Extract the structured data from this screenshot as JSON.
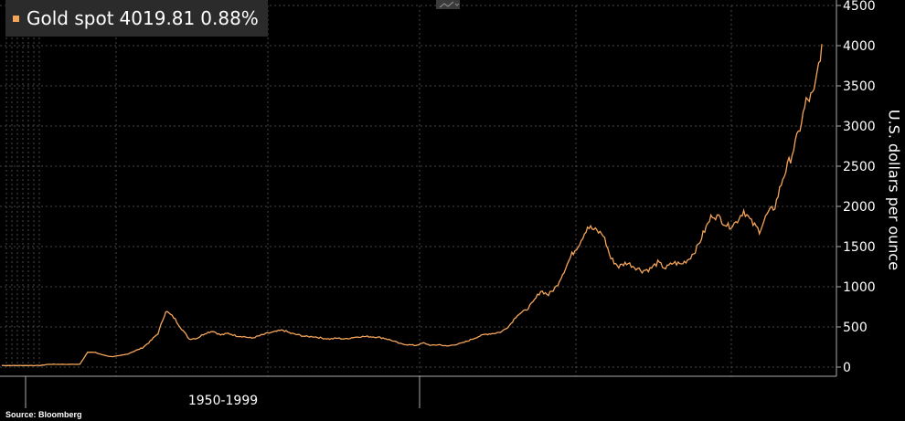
{
  "legend": {
    "series_name": "Gold spot",
    "last_value": "4019.81",
    "change": "0.88%",
    "swatch_color": "#f5a55a"
  },
  "source_note": "Source: Bloomberg",
  "toolbar": {
    "chart_type_icon": "line-chart-icon"
  },
  "chart_data": {
    "type": "line",
    "title": "Gold spot",
    "ylabel": "U.S. dollars per ounce",
    "xlabel": "",
    "ylim": [
      0,
      4500
    ],
    "yticks": [
      0,
      500,
      1000,
      1500,
      2000,
      2500,
      3000,
      3500,
      4000,
      4500
    ],
    "xtick_label": "1950-1999",
    "grid": true,
    "line_color": "#f5a55a",
    "series": [
      {
        "name": "Gold spot",
        "values": [
          20,
          20,
          20,
          20,
          20,
          21,
          35,
          35,
          35,
          35,
          35,
          190,
          180,
          150,
          130,
          140,
          160,
          200,
          240,
          320,
          420,
          700,
          620,
          480,
          350,
          360,
          420,
          450,
          400,
          420,
          390,
          380,
          360,
          390,
          420,
          440,
          460,
          420,
          400,
          380,
          380,
          360,
          350,
          360,
          350,
          370,
          380,
          380,
          375,
          360,
          330,
          290,
          280,
          270,
          300,
          270,
          280,
          260,
          280,
          300,
          340,
          380,
          410,
          420,
          440,
          520,
          650,
          700,
          800,
          950,
          900,
          1000,
          1200,
          1400,
          1550,
          1750,
          1700,
          1650,
          1350,
          1250,
          1300,
          1250,
          1200,
          1220,
          1300,
          1230,
          1300,
          1280,
          1350,
          1480,
          1700,
          1900,
          1850,
          1750,
          1800,
          1950,
          1800,
          1700,
          1900,
          2000,
          2350,
          2600,
          2900,
          3300,
          3400,
          4019
        ]
      }
    ]
  }
}
